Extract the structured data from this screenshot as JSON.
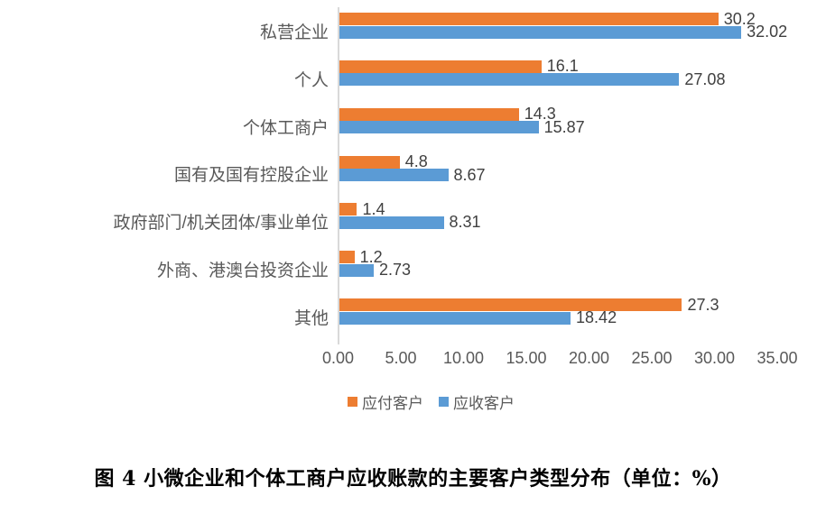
{
  "chart_data": {
    "type": "bar",
    "orientation": "horizontal",
    "title": "",
    "categories": [
      "私营企业",
      "个人",
      "个体工商户",
      "国有及国有控股企业",
      "政府部门/机关团体/事业单位",
      "外商、港澳台投资企业",
      "其他"
    ],
    "series": [
      {
        "name": "应付客户",
        "color": "#ED7D31",
        "values": [
          30.2,
          16.1,
          14.3,
          4.8,
          1.4,
          1.2,
          27.3
        ],
        "labels": [
          "30.2",
          "16.1",
          "14.3",
          "4.8",
          "1.4",
          "1.2",
          "27.3"
        ]
      },
      {
        "name": "应收客户",
        "color": "#5B9BD5",
        "values": [
          32.02,
          27.08,
          15.87,
          8.67,
          8.31,
          2.73,
          18.42
        ],
        "labels": [
          "32.02",
          "27.08",
          "15.87",
          "8.67",
          "8.31",
          "2.73",
          "18.42"
        ]
      }
    ],
    "xlim": [
      0,
      35
    ],
    "x_ticks": [
      "0.00",
      "5.00",
      "10.00",
      "15.00",
      "20.00",
      "25.00",
      "30.00",
      "35.00"
    ],
    "grid": false,
    "legend_position": "bottom",
    "axis_color": "#D9D9D9",
    "tick_label_color": "#595959",
    "value_label_color": "#404040"
  },
  "caption": {
    "text": "图 4 小微企业和个体工商户应收账款的主要客户类型分布（单位：%）"
  }
}
